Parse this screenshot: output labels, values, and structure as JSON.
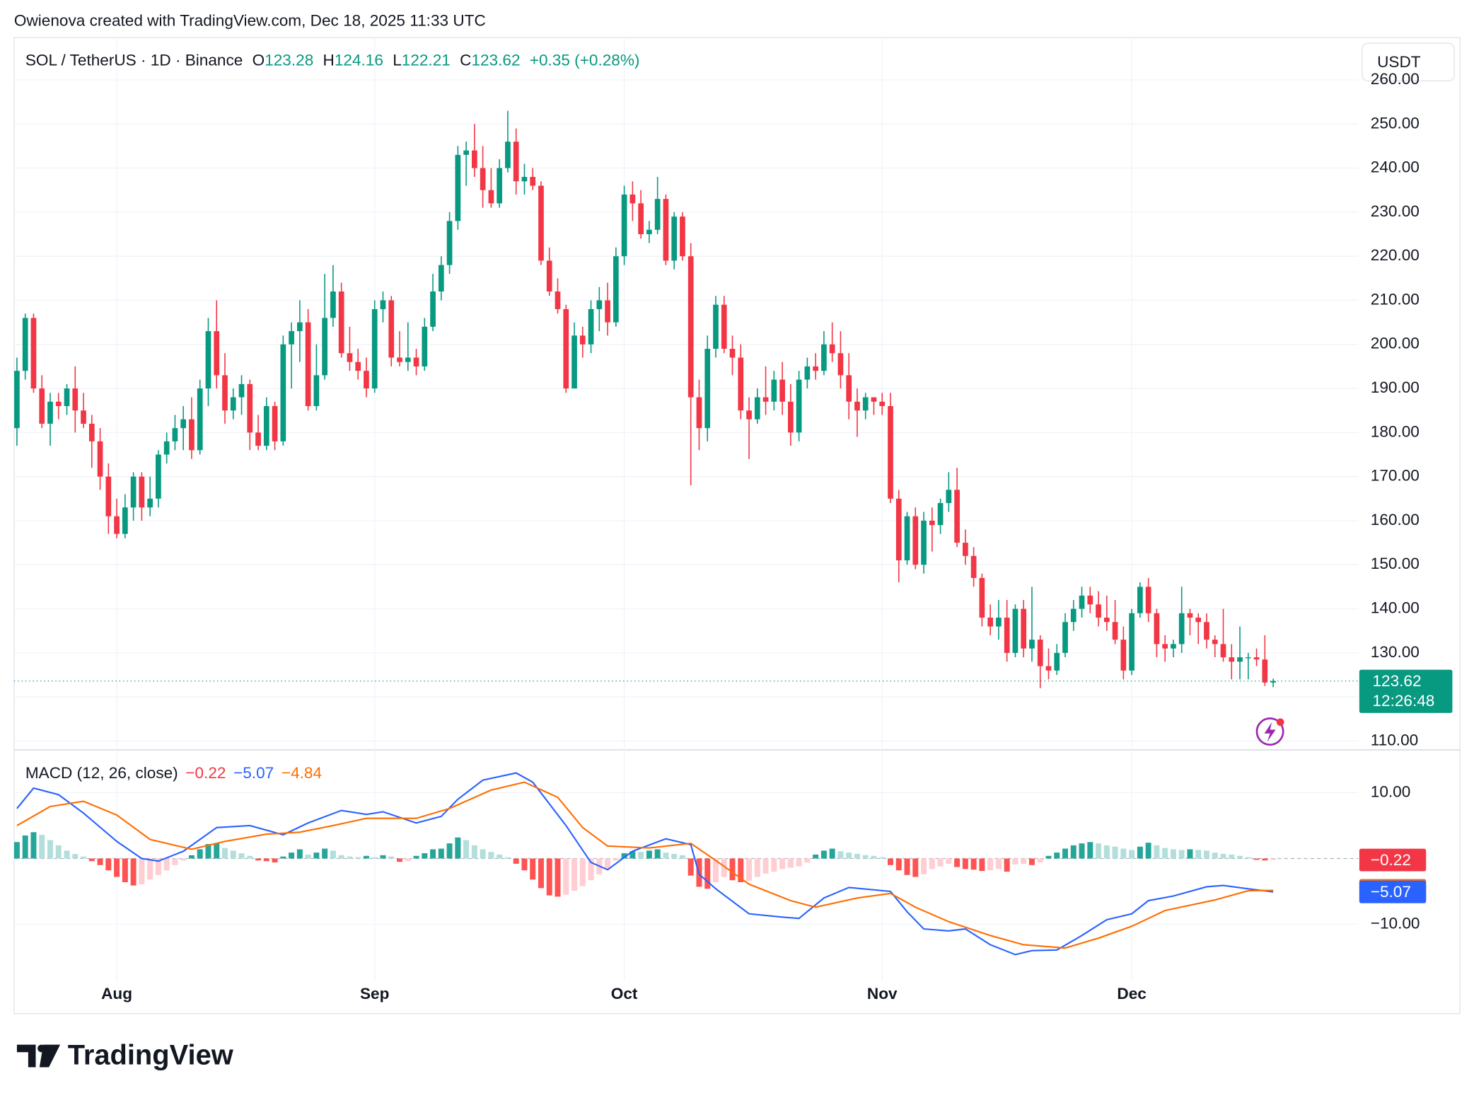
{
  "watermark": "Owienova created with TradingView.com, Dec 18, 2025 11:33 UTC",
  "logo": "TradingView",
  "chart_data": {
    "type": "candlestick",
    "symbol": "SOL / TetherUS · 1D · Binance",
    "ohlc_letters": [
      "O",
      "H",
      "L",
      "C"
    ],
    "change": "+0.35 (+0.28%)",
    "currency": "USDT",
    "countdown": "12:26:48",
    "colors": {
      "up": "#089981",
      "down": "#f23645"
    },
    "ohlc": [
      [
        181,
        197,
        177,
        194
      ],
      [
        194,
        207,
        192,
        206
      ],
      [
        206,
        207,
        189,
        190
      ],
      [
        190,
        193,
        181,
        182
      ],
      [
        182,
        189,
        177,
        187
      ],
      [
        187,
        189,
        183,
        186
      ],
      [
        186,
        191,
        184,
        190
      ],
      [
        190,
        195,
        180,
        185
      ],
      [
        185,
        189,
        181,
        182
      ],
      [
        182,
        184,
        172,
        178
      ],
      [
        178,
        181,
        167,
        170
      ],
      [
        170,
        173,
        157,
        161
      ],
      [
        161,
        165,
        156,
        157
      ],
      [
        157,
        166,
        156,
        163
      ],
      [
        163,
        171,
        160,
        170
      ],
      [
        170,
        171,
        160,
        163
      ],
      [
        163,
        170,
        161,
        165
      ],
      [
        165,
        176,
        163,
        175
      ],
      [
        175,
        180,
        173,
        178
      ],
      [
        178,
        184,
        176,
        181
      ],
      [
        181,
        186,
        176,
        183
      ],
      [
        183,
        188,
        174,
        176
      ],
      [
        176,
        192,
        175,
        190
      ],
      [
        190,
        206,
        186,
        203
      ],
      [
        203,
        210,
        190,
        193
      ],
      [
        193,
        198,
        182,
        185
      ],
      [
        185,
        190,
        183,
        188
      ],
      [
        188,
        193,
        184,
        191
      ],
      [
        191,
        192,
        176,
        180
      ],
      [
        180,
        184,
        176,
        177
      ],
      [
        177,
        188,
        176,
        186
      ],
      [
        186,
        187,
        176,
        178
      ],
      [
        178,
        202,
        177,
        200
      ],
      [
        200,
        205,
        190,
        203
      ],
      [
        203,
        210,
        196,
        205
      ],
      [
        205,
        208,
        185,
        186
      ],
      [
        186,
        200,
        185,
        193
      ],
      [
        193,
        216,
        192,
        206
      ],
      [
        206,
        218,
        204,
        212
      ],
      [
        212,
        214,
        197,
        198
      ],
      [
        198,
        204,
        194,
        196
      ],
      [
        196,
        199,
        192,
        194
      ],
      [
        194,
        197,
        188,
        190
      ],
      [
        190,
        210,
        189,
        208
      ],
      [
        208,
        212,
        205,
        210
      ],
      [
        210,
        211,
        195,
        197
      ],
      [
        197,
        203,
        195,
        196
      ],
      [
        196,
        205,
        194,
        197
      ],
      [
        197,
        199,
        193,
        195
      ],
      [
        195,
        206,
        194,
        204
      ],
      [
        204,
        216,
        203,
        212
      ],
      [
        212,
        220,
        210,
        218
      ],
      [
        218,
        230,
        216,
        228
      ],
      [
        228,
        245,
        226,
        243
      ],
      [
        243,
        246,
        236,
        244
      ],
      [
        244,
        250,
        238,
        240
      ],
      [
        240,
        245,
        231,
        235
      ],
      [
        235,
        240,
        231,
        232
      ],
      [
        232,
        242,
        231,
        240
      ],
      [
        240,
        253,
        239,
        246
      ],
      [
        246,
        249,
        234,
        237
      ],
      [
        237,
        241,
        234,
        238
      ],
      [
        238,
        240,
        235,
        236
      ],
      [
        236,
        237,
        218,
        219
      ],
      [
        219,
        222,
        211,
        212
      ],
      [
        212,
        215,
        207,
        208
      ],
      [
        208,
        209,
        189,
        190
      ],
      [
        190,
        205,
        190,
        202
      ],
      [
        202,
        204,
        197,
        200
      ],
      [
        200,
        210,
        198,
        208
      ],
      [
        208,
        213,
        203,
        210
      ],
      [
        210,
        214,
        202,
        205
      ],
      [
        205,
        222,
        204,
        220
      ],
      [
        220,
        236,
        218,
        234
      ],
      [
        234,
        237,
        228,
        232
      ],
      [
        232,
        235,
        224,
        225
      ],
      [
        225,
        228,
        223,
        226
      ],
      [
        226,
        238,
        225,
        233
      ],
      [
        233,
        234,
        218,
        219
      ],
      [
        219,
        230,
        217,
        229
      ],
      [
        229,
        230,
        219,
        220
      ],
      [
        220,
        223,
        168,
        188
      ],
      [
        188,
        192,
        176,
        181
      ],
      [
        181,
        202,
        178,
        199
      ],
      [
        199,
        211,
        197,
        209
      ],
      [
        209,
        211,
        198,
        199
      ],
      [
        199,
        202,
        193,
        197
      ],
      [
        197,
        200,
        183,
        185
      ],
      [
        185,
        188,
        174,
        183
      ],
      [
        183,
        190,
        182,
        188
      ],
      [
        188,
        195,
        184,
        187
      ],
      [
        187,
        194,
        185,
        192
      ],
      [
        192,
        196,
        184,
        187
      ],
      [
        187,
        191,
        177,
        180
      ],
      [
        180,
        194,
        178,
        192
      ],
      [
        192,
        197,
        190,
        195
      ],
      [
        195,
        198,
        192,
        194
      ],
      [
        194,
        203,
        193,
        200
      ],
      [
        200,
        205,
        196,
        198
      ],
      [
        198,
        203,
        190,
        193
      ],
      [
        193,
        198,
        183,
        187
      ],
      [
        187,
        190,
        179,
        185
      ],
      [
        185,
        189,
        183,
        188
      ],
      [
        188,
        188,
        184,
        187
      ],
      [
        187,
        189,
        184,
        186
      ],
      [
        186,
        189,
        164,
        165
      ],
      [
        165,
        167,
        146,
        151
      ],
      [
        151,
        162,
        150,
        161
      ],
      [
        161,
        163,
        149,
        150
      ],
      [
        150,
        162,
        148,
        160
      ],
      [
        160,
        163,
        153,
        159
      ],
      [
        159,
        165,
        157,
        164
      ],
      [
        164,
        171,
        162,
        167
      ],
      [
        167,
        172,
        154,
        155
      ],
      [
        155,
        158,
        150,
        152
      ],
      [
        152,
        154,
        145,
        147
      ],
      [
        147,
        148,
        136,
        138
      ],
      [
        138,
        141,
        134,
        136
      ],
      [
        136,
        142,
        133,
        138
      ],
      [
        138,
        142,
        128,
        130
      ],
      [
        130,
        141,
        129,
        140
      ],
      [
        140,
        142,
        129,
        131
      ],
      [
        131,
        145,
        128,
        133
      ],
      [
        133,
        134,
        122,
        127
      ],
      [
        127,
        131,
        124,
        126
      ],
      [
        126,
        132,
        125,
        130
      ],
      [
        130,
        139,
        129,
        137
      ],
      [
        137,
        142,
        135,
        140
      ],
      [
        140,
        145,
        138,
        143
      ],
      [
        143,
        145,
        139,
        141
      ],
      [
        141,
        144,
        136,
        138
      ],
      [
        138,
        143,
        135,
        137
      ],
      [
        137,
        142,
        132,
        133
      ],
      [
        133,
        136,
        124,
        126
      ],
      [
        126,
        140,
        125,
        139
      ],
      [
        139,
        146,
        138,
        145
      ],
      [
        145,
        147,
        137,
        139
      ],
      [
        139,
        140,
        129,
        132
      ],
      [
        132,
        134,
        128,
        131
      ],
      [
        131,
        133,
        129,
        132
      ],
      [
        132,
        145,
        130,
        139
      ],
      [
        139,
        140,
        134,
        138
      ],
      [
        138,
        139,
        132,
        137
      ],
      [
        137,
        139,
        131,
        133
      ],
      [
        133,
        134,
        129,
        132
      ],
      [
        132,
        140,
        128,
        129
      ],
      [
        129,
        132,
        124,
        128
      ],
      [
        128,
        136,
        124,
        129
      ],
      [
        129,
        130,
        124,
        129
      ],
      [
        129,
        131,
        127,
        128.5
      ],
      [
        128.5,
        134,
        122.5,
        123.28
      ],
      [
        123.28,
        124.16,
        122.21,
        123.62
      ]
    ],
    "xlim": [
      -0.34,
      161.24
    ],
    "xticks": [
      {
        "value": 12,
        "label": "Aug"
      },
      {
        "value": 43,
        "label": "Sep"
      },
      {
        "value": 73,
        "label": "Oct"
      },
      {
        "value": 104,
        "label": "Nov"
      },
      {
        "value": 134,
        "label": "Dec"
      }
    ],
    "ylim": [
      108.1,
      269.6
    ],
    "yticks": [
      {
        "value": 110,
        "label": "110.00"
      },
      {
        "value": 120,
        "label": "120.00"
      },
      {
        "value": 130,
        "label": "130.00"
      },
      {
        "value": 140,
        "label": "140.00"
      },
      {
        "value": 150,
        "label": "150.00"
      },
      {
        "value": 160,
        "label": "160.00"
      },
      {
        "value": 170,
        "label": "170.00"
      },
      {
        "value": 180,
        "label": "180.00"
      },
      {
        "value": 190,
        "label": "190.00"
      },
      {
        "value": 200,
        "label": "200.00"
      },
      {
        "value": 210,
        "label": "210.00"
      },
      {
        "value": 220,
        "label": "220.00"
      },
      {
        "value": 230,
        "label": "230.00"
      },
      {
        "value": 240,
        "label": "240.00"
      },
      {
        "value": 250,
        "label": "250.00"
      },
      {
        "value": 260,
        "label": "260.00"
      }
    ],
    "grid": true,
    "indicator": {
      "type": "macd",
      "title": "MACD (12, 26, close)",
      "ylim": [
        -18.57,
        16.43
      ],
      "yticks": [
        {
          "value": 10,
          "label": "10.00"
        },
        {
          "value": -10,
          "label": "−10.00"
        }
      ],
      "histogram": {
        "colors": {
          "up_grow": "#26a69a",
          "up_fall": "#b2dfdb",
          "down_grow": "#ff5252",
          "down_fall": "#ffcdd2"
        },
        "last_label": "−0.22",
        "label_color": "#f23645",
        "values": [
          2.5,
          3.5,
          4.0,
          3.6,
          2.8,
          2.0,
          1.2,
          0.7,
          0.3,
          -0.4,
          -1.0,
          -1.8,
          -2.8,
          -3.6,
          -4.1,
          -3.9,
          -3.2,
          -2.5,
          -1.8,
          -1.0,
          -0.3,
          0.5,
          1.4,
          2.2,
          2.3,
          1.6,
          1.2,
          0.8,
          0.4,
          -0.3,
          -0.4,
          -0.6,
          0.3,
          0.9,
          1.4,
          0.6,
          0.9,
          1.5,
          1.2,
          0.5,
          0.3,
          0.2,
          0.4,
          0.2,
          0.5,
          0.3,
          -0.5,
          -0.4,
          0.4,
          0.8,
          1.4,
          1.5,
          2.3,
          3.2,
          2.8,
          2.0,
          1.4,
          1.0,
          0.6,
          0.2,
          -0.8,
          -1.8,
          -3.2,
          -4.5,
          -5.6,
          -5.8,
          -5.5,
          -4.9,
          -4.2,
          -3.3,
          -2.4,
          -1.7,
          -0.3,
          0.8,
          1.1,
          1.0,
          1.2,
          1.4,
          0.9,
          0.7,
          0.5,
          -2.6,
          -4.3,
          -4.6,
          -3.6,
          -2.8,
          -3.3,
          -3.6,
          -3.4,
          -2.8,
          -2.3,
          -2.0,
          -1.6,
          -1.4,
          -1.2,
          -0.6,
          0.6,
          1.2,
          1.5,
          1.1,
          0.9,
          0.7,
          0.5,
          0.4,
          0.2,
          -1.0,
          -1.8,
          -2.5,
          -2.8,
          -2.4,
          -1.6,
          -1.2,
          -0.8,
          -1.3,
          -1.6,
          -1.7,
          -1.9,
          -1.8,
          -1.6,
          -2.0,
          -0.9,
          -0.8,
          -1.0,
          -0.6,
          0.4,
          0.9,
          1.5,
          2.0,
          2.3,
          2.5,
          2.3,
          2.0,
          1.8,
          1.5,
          1.3,
          1.8,
          2.4,
          2.0,
          1.6,
          1.4,
          1.3,
          1.4,
          1.3,
          1.2,
          0.9,
          0.7,
          0.6,
          0.4,
          0.2,
          -0.2,
          -0.3,
          -0.22
        ]
      },
      "series": [
        {
          "color": "#2962ff",
          "last_label": "−5.07",
          "x": [
            0,
            2,
            5,
            8,
            12,
            15,
            17,
            20,
            24,
            28,
            32,
            35,
            39,
            42,
            44,
            48,
            51,
            53,
            56,
            60,
            62,
            66,
            69,
            71,
            74,
            78,
            81,
            82,
            84,
            88,
            92,
            94,
            97,
            100,
            105,
            107,
            109,
            112,
            114,
            117,
            120,
            122,
            125,
            128,
            131,
            134,
            136,
            139,
            143,
            145,
            148,
            151
          ],
          "values": [
            7.6,
            10.7,
            9.7,
            6.9,
            2.6,
            0,
            -0.4,
            1.1,
            4.7,
            5.0,
            3.6,
            5.4,
            7.3,
            6.7,
            7.1,
            5.4,
            6.4,
            9.0,
            11.9,
            13.0,
            11.6,
            5.0,
            -0.6,
            -1.7,
            1.1,
            3.0,
            2.1,
            -2.4,
            -4.6,
            -8.4,
            -8.9,
            -9.1,
            -6.0,
            -4.4,
            -5.0,
            -8.1,
            -10.7,
            -11.0,
            -10.7,
            -13.1,
            -14.6,
            -14.0,
            -13.9,
            -11.7,
            -9.3,
            -8.4,
            -6.4,
            -5.7,
            -4.3,
            -4.1,
            -4.6,
            -5.07
          ]
        },
        {
          "color": "#ff6d00",
          "last_label": "−4.84",
          "x": [
            0,
            4,
            8,
            12,
            16,
            21,
            25,
            30,
            34,
            38,
            42,
            48,
            52,
            57,
            61,
            65,
            68,
            71,
            76,
            81,
            84,
            88,
            93,
            96,
            101,
            105,
            108,
            112,
            117,
            121,
            126,
            130,
            134,
            138,
            144,
            148,
            151
          ],
          "values": [
            5.0,
            7.9,
            8.7,
            6.6,
            2.9,
            1.4,
            2.6,
            3.7,
            4.0,
            5.0,
            6.1,
            6.1,
            7.6,
            10.4,
            11.6,
            9.3,
            4.7,
            1.9,
            1.6,
            2.3,
            -0.3,
            -3.9,
            -6.4,
            -7.4,
            -6.0,
            -5.3,
            -7.4,
            -9.6,
            -11.7,
            -13.1,
            -13.6,
            -12.1,
            -10.3,
            -7.9,
            -6.3,
            -4.9,
            -4.84
          ]
        }
      ]
    }
  }
}
